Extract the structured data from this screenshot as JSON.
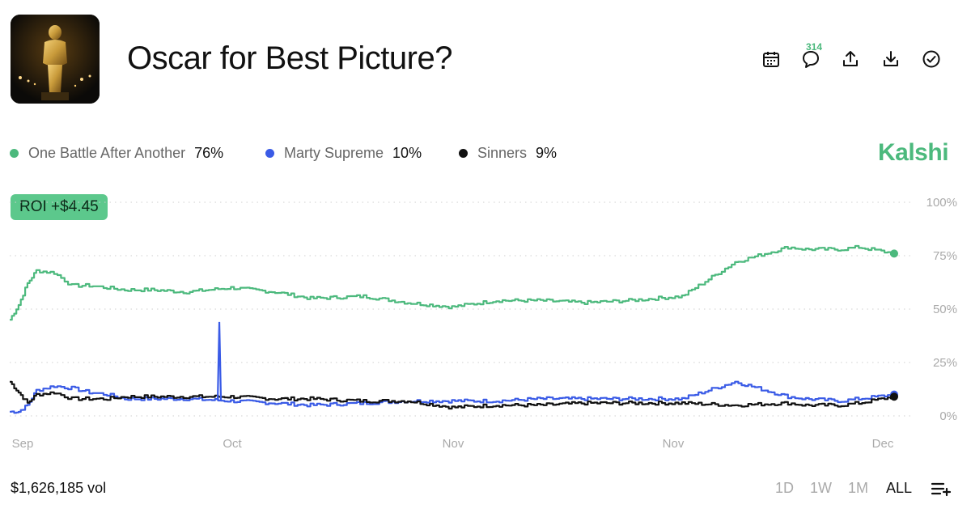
{
  "header": {
    "title": "Oscar for Best Picture?",
    "comment_count": "314"
  },
  "toolbar": {
    "icons": [
      "calendar-icon",
      "comment-icon",
      "share-upload-icon",
      "download-icon",
      "check-circle-icon"
    ]
  },
  "brand": "Kalshi",
  "roi_badge": "ROI +$4.45",
  "legend": [
    {
      "name": "One Battle After Another",
      "value": "76%",
      "color": "#4cb97d"
    },
    {
      "name": "Marty Supreme",
      "value": "10%",
      "color": "#3a5be6"
    },
    {
      "name": "Sinners",
      "value": "9%",
      "color": "#111111"
    }
  ],
  "footer": {
    "volume": "$1,626,185 vol",
    "ranges": [
      "1D",
      "1W",
      "1M",
      "ALL"
    ],
    "active_range": "ALL"
  },
  "chart_data": {
    "type": "line",
    "x_tick_labels": [
      "Sep",
      "Oct",
      "Nov",
      "Nov",
      "Dec"
    ],
    "y_tick_labels": [
      "100%",
      "75%",
      "50%",
      "25%",
      "0%"
    ],
    "ylim": [
      0,
      100
    ],
    "y_ticks": [
      100,
      75,
      50,
      25,
      0
    ],
    "grid": "horizontal dotted",
    "x": [
      0,
      1,
      2,
      3,
      5,
      7,
      9,
      11,
      13,
      16,
      20,
      25,
      30,
      34,
      40,
      45,
      50,
      55,
      60,
      65,
      70,
      76,
      82,
      88,
      90,
      94,
      96,
      100
    ],
    "series": [
      {
        "name": "One Battle After Another",
        "color": "#4cb97d",
        "values": [
          45,
          52,
          62,
          68,
          67,
          61,
          61,
          60,
          59,
          59,
          58,
          60,
          58,
          55,
          56,
          53,
          51,
          54,
          54,
          53,
          54,
          56,
          72,
          79,
          78,
          78,
          79,
          76
        ]
      },
      {
        "name": "Marty Supreme",
        "color": "#3a5be6",
        "values": [
          2,
          2,
          5,
          12,
          14,
          13,
          11,
          10,
          8,
          8,
          8,
          7,
          6,
          5,
          6,
          7,
          7,
          7,
          8,
          8,
          8,
          8,
          16,
          9,
          8,
          7,
          8,
          10
        ]
      },
      {
        "name": "Sinners",
        "color": "#111111",
        "values": [
          16,
          11,
          6,
          10,
          11,
          8,
          8,
          8,
          9,
          9,
          9,
          9,
          8,
          8,
          7,
          7,
          4,
          5,
          5,
          6,
          6,
          6,
          5,
          6,
          5,
          5,
          6,
          9
        ]
      }
    ],
    "spikes": [
      {
        "series": "Marty Supreme",
        "x": 23.7,
        "value": 44
      }
    ]
  }
}
